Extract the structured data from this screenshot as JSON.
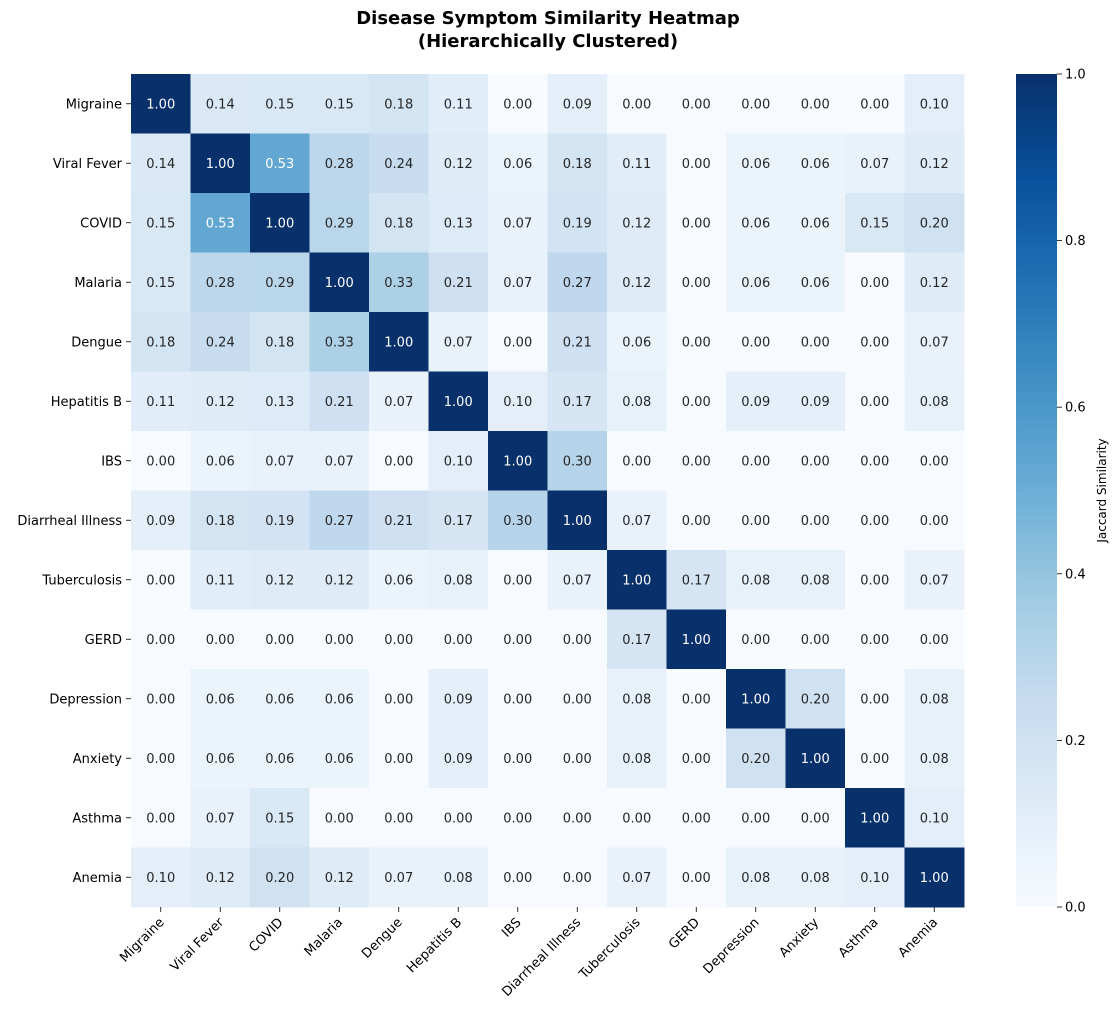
{
  "chart_data": {
    "type": "heatmap",
    "title": "Disease Symptom Similarity Heatmap",
    "subtitle": "(Hierarchically Clustered)",
    "labels": [
      "Migraine",
      "Viral Fever",
      "COVID",
      "Malaria",
      "Dengue",
      "Hepatitis B",
      "IBS",
      "Diarrheal Illness",
      "Tuberculosis",
      "GERD",
      "Depression",
      "Anxiety",
      "Asthma",
      "Anemia"
    ],
    "values": [
      [
        1.0,
        0.14,
        0.15,
        0.15,
        0.18,
        0.11,
        0.0,
        0.09,
        0.0,
        0.0,
        0.0,
        0.0,
        0.0,
        0.1
      ],
      [
        0.14,
        1.0,
        0.53,
        0.28,
        0.24,
        0.12,
        0.06,
        0.18,
        0.11,
        0.0,
        0.06,
        0.06,
        0.07,
        0.12
      ],
      [
        0.15,
        0.53,
        1.0,
        0.29,
        0.18,
        0.13,
        0.07,
        0.19,
        0.12,
        0.0,
        0.06,
        0.06,
        0.15,
        0.2
      ],
      [
        0.15,
        0.28,
        0.29,
        1.0,
        0.33,
        0.21,
        0.07,
        0.27,
        0.12,
        0.0,
        0.06,
        0.06,
        0.0,
        0.12
      ],
      [
        0.18,
        0.24,
        0.18,
        0.33,
        1.0,
        0.07,
        0.0,
        0.21,
        0.06,
        0.0,
        0.0,
        0.0,
        0.0,
        0.07
      ],
      [
        0.11,
        0.12,
        0.13,
        0.21,
        0.07,
        1.0,
        0.1,
        0.17,
        0.08,
        0.0,
        0.09,
        0.09,
        0.0,
        0.08
      ],
      [
        0.0,
        0.06,
        0.07,
        0.07,
        0.0,
        0.1,
        1.0,
        0.3,
        0.0,
        0.0,
        0.0,
        0.0,
        0.0,
        0.0
      ],
      [
        0.09,
        0.18,
        0.19,
        0.27,
        0.21,
        0.17,
        0.3,
        1.0,
        0.07,
        0.0,
        0.0,
        0.0,
        0.0,
        0.0
      ],
      [
        0.0,
        0.11,
        0.12,
        0.12,
        0.06,
        0.08,
        0.0,
        0.07,
        1.0,
        0.17,
        0.08,
        0.08,
        0.0,
        0.07
      ],
      [
        0.0,
        0.0,
        0.0,
        0.0,
        0.0,
        0.0,
        0.0,
        0.0,
        0.17,
        1.0,
        0.0,
        0.0,
        0.0,
        0.0
      ],
      [
        0.0,
        0.06,
        0.06,
        0.06,
        0.0,
        0.09,
        0.0,
        0.0,
        0.08,
        0.0,
        1.0,
        0.2,
        0.0,
        0.08
      ],
      [
        0.0,
        0.06,
        0.06,
        0.06,
        0.0,
        0.09,
        0.0,
        0.0,
        0.08,
        0.0,
        0.2,
        1.0,
        0.0,
        0.08
      ],
      [
        0.0,
        0.07,
        0.15,
        0.0,
        0.0,
        0.0,
        0.0,
        0.0,
        0.0,
        0.0,
        0.0,
        0.0,
        1.0,
        0.1
      ],
      [
        0.1,
        0.12,
        0.2,
        0.12,
        0.07,
        0.08,
        0.0,
        0.0,
        0.07,
        0.0,
        0.08,
        0.08,
        0.1,
        1.0
      ]
    ],
    "colorbar": {
      "label": "Jaccard Similarity",
      "range": [
        0,
        1
      ],
      "ticks": [
        "0.0",
        "0.2",
        "0.4",
        "0.6",
        "0.8",
        "1.0"
      ],
      "colormap": "Blues"
    }
  }
}
